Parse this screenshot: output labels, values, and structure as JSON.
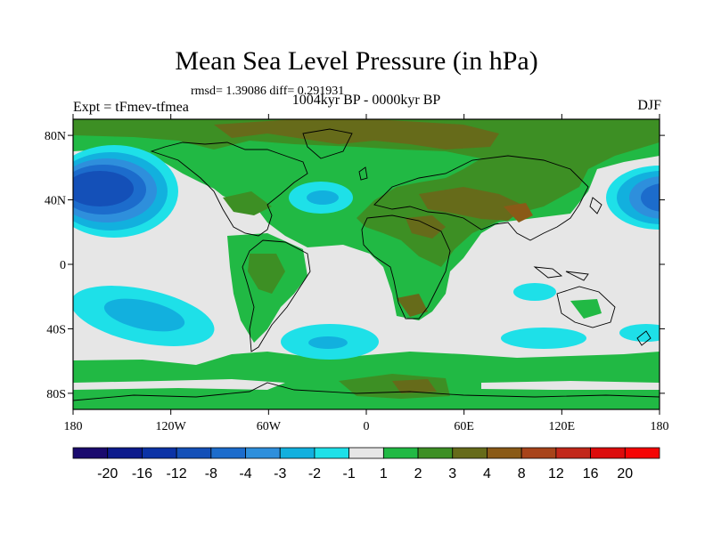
{
  "title": "Mean Sea Level Pressure (in hPa)",
  "stats": "rmsd= 1.39086 diff= 0.291931",
  "left_label": "Expt = tFmev-tfmea",
  "center_label": "1004kyr BP - 0000kyr BP",
  "right_label": "DJF",
  "chart_data": {
    "type": "contour-map",
    "variable": "Mean Sea Level Pressure difference",
    "units": "hPa",
    "season": "DJF",
    "x_ticks": [
      "180",
      "120W",
      "60W",
      "0",
      "60E",
      "120E",
      "180"
    ],
    "x_tick_values": [
      -180,
      -120,
      -60,
      0,
      60,
      120,
      180
    ],
    "y_ticks": [
      "80N",
      "40N",
      "0",
      "40S",
      "80S"
    ],
    "y_tick_values": [
      80,
      40,
      0,
      -40,
      -80
    ],
    "lon_range": [
      -180,
      180
    ],
    "lat_range": [
      -90,
      90
    ],
    "colorbar": {
      "labels": [
        "-20",
        "-16",
        "-12",
        "-8",
        "-4",
        "-3",
        "-2",
        "-1",
        "1",
        "2",
        "3",
        "4",
        "8",
        "12",
        "16",
        "20"
      ],
      "colors": [
        "#1a0a6e",
        "#0c1a8c",
        "#0c33a6",
        "#1450b8",
        "#1c6ccc",
        "#2e8fdc",
        "#12b0de",
        "#1ee0e8",
        "#e6e6e6",
        "#21b944",
        "#3d8f24",
        "#666b1a",
        "#8a5a17",
        "#a8441a",
        "#c2281a",
        "#dc0c0c",
        "#f50505"
      ]
    },
    "regions": [
      {
        "name": "north-pacific-low",
        "lon": -150,
        "lat": 42,
        "value": -8
      },
      {
        "name": "north-atlantic-low",
        "lon": -25,
        "lat": 38,
        "value": -2
      },
      {
        "name": "northwest-pacific-low",
        "lon": 165,
        "lat": 37,
        "value": -4
      },
      {
        "name": "south-pacific-low",
        "lon": -130,
        "lat": -32,
        "value": -3
      },
      {
        "name": "south-atlantic-low",
        "lon": -25,
        "lat": -45,
        "value": -3
      },
      {
        "name": "eurasia-high",
        "lon": 60,
        "lat": 50,
        "value": 4
      },
      {
        "name": "arctic-high",
        "lon": 0,
        "lat": 85,
        "value": 4
      },
      {
        "name": "antarctic-high",
        "lon": 20,
        "lat": -82,
        "value": 3
      }
    ]
  }
}
